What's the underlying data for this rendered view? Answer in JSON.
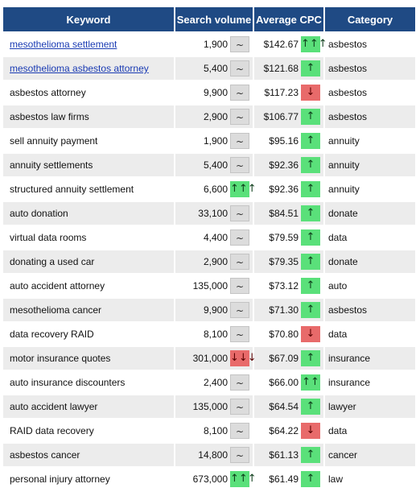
{
  "headers": {
    "keyword": "Keyword",
    "volume": "Search volume",
    "cpc": "Average CPC",
    "category": "Category"
  },
  "trend_symbols": {
    "flat": "~",
    "up1": "↑",
    "up2": "↑↑",
    "up3": "↑↑↑",
    "down1": "↓",
    "down3": "↓↓↓"
  },
  "colors": {
    "header_bg": "#1f4a84",
    "up": "#5ae07a",
    "down": "#e86a6a",
    "flat": "#dcdcdc",
    "link": "#1a3bb3"
  },
  "rows": [
    {
      "keyword": "mesothelioma settlement",
      "link": true,
      "volume": "1,900",
      "vol_trend": "flat",
      "cpc": "$142.67",
      "cpc_trend": "up3",
      "category": "asbestos"
    },
    {
      "keyword": "mesothelioma asbestos attorney",
      "link": true,
      "volume": "5,400",
      "vol_trend": "flat",
      "cpc": "$121.68",
      "cpc_trend": "up1",
      "category": "asbestos"
    },
    {
      "keyword": "asbestos attorney",
      "link": false,
      "volume": "9,900",
      "vol_trend": "flat",
      "cpc": "$117.23",
      "cpc_trend": "down1",
      "category": "asbestos"
    },
    {
      "keyword": "asbestos law firms",
      "link": false,
      "volume": "2,900",
      "vol_trend": "flat",
      "cpc": "$106.77",
      "cpc_trend": "up1",
      "category": "asbestos"
    },
    {
      "keyword": "sell annuity payment",
      "link": false,
      "volume": "1,900",
      "vol_trend": "flat",
      "cpc": "$95.16",
      "cpc_trend": "up1",
      "category": "annuity"
    },
    {
      "keyword": "annuity settlements",
      "link": false,
      "volume": "5,400",
      "vol_trend": "flat",
      "cpc": "$92.36",
      "cpc_trend": "up1",
      "category": "annuity"
    },
    {
      "keyword": "structured annuity settlement",
      "link": false,
      "volume": "6,600",
      "vol_trend": "up3",
      "cpc": "$92.36",
      "cpc_trend": "up1",
      "category": "annuity"
    },
    {
      "keyword": "auto donation",
      "link": false,
      "volume": "33,100",
      "vol_trend": "flat",
      "cpc": "$84.51",
      "cpc_trend": "up1",
      "category": "donate"
    },
    {
      "keyword": "virtual data rooms",
      "link": false,
      "volume": "4,400",
      "vol_trend": "flat",
      "cpc": "$79.59",
      "cpc_trend": "up1",
      "category": "data"
    },
    {
      "keyword": "donating a used car",
      "link": false,
      "volume": "2,900",
      "vol_trend": "flat",
      "cpc": "$79.35",
      "cpc_trend": "up1",
      "category": "donate"
    },
    {
      "keyword": "auto accident attorney",
      "link": false,
      "volume": "135,000",
      "vol_trend": "flat",
      "cpc": "$73.12",
      "cpc_trend": "up1",
      "category": "auto"
    },
    {
      "keyword": "mesothelioma cancer",
      "link": false,
      "volume": "9,900",
      "vol_trend": "flat",
      "cpc": "$71.30",
      "cpc_trend": "up1",
      "category": "asbestos"
    },
    {
      "keyword": "data recovery RAID",
      "link": false,
      "volume": "8,100",
      "vol_trend": "flat",
      "cpc": "$70.80",
      "cpc_trend": "down1",
      "category": "data"
    },
    {
      "keyword": "motor insurance quotes",
      "link": false,
      "volume": "301,000",
      "vol_trend": "down3",
      "cpc": "$67.09",
      "cpc_trend": "up1",
      "category": "insurance"
    },
    {
      "keyword": "auto insurance discounters",
      "link": false,
      "volume": "2,400",
      "vol_trend": "flat",
      "cpc": "$66.00",
      "cpc_trend": "up2",
      "category": "insurance"
    },
    {
      "keyword": "auto accident lawyer",
      "link": false,
      "volume": "135,000",
      "vol_trend": "flat",
      "cpc": "$64.54",
      "cpc_trend": "up1",
      "category": "lawyer"
    },
    {
      "keyword": "RAID data recovery",
      "link": false,
      "volume": "8,100",
      "vol_trend": "flat",
      "cpc": "$64.22",
      "cpc_trend": "down1",
      "category": "data"
    },
    {
      "keyword": "asbestos cancer",
      "link": false,
      "volume": "14,800",
      "vol_trend": "flat",
      "cpc": "$61.13",
      "cpc_trend": "up1",
      "category": "cancer"
    },
    {
      "keyword": "personal injury attorney",
      "link": false,
      "volume": "673,000",
      "vol_trend": "up3",
      "cpc": "$61.49",
      "cpc_trend": "up1",
      "category": "law"
    }
  ]
}
